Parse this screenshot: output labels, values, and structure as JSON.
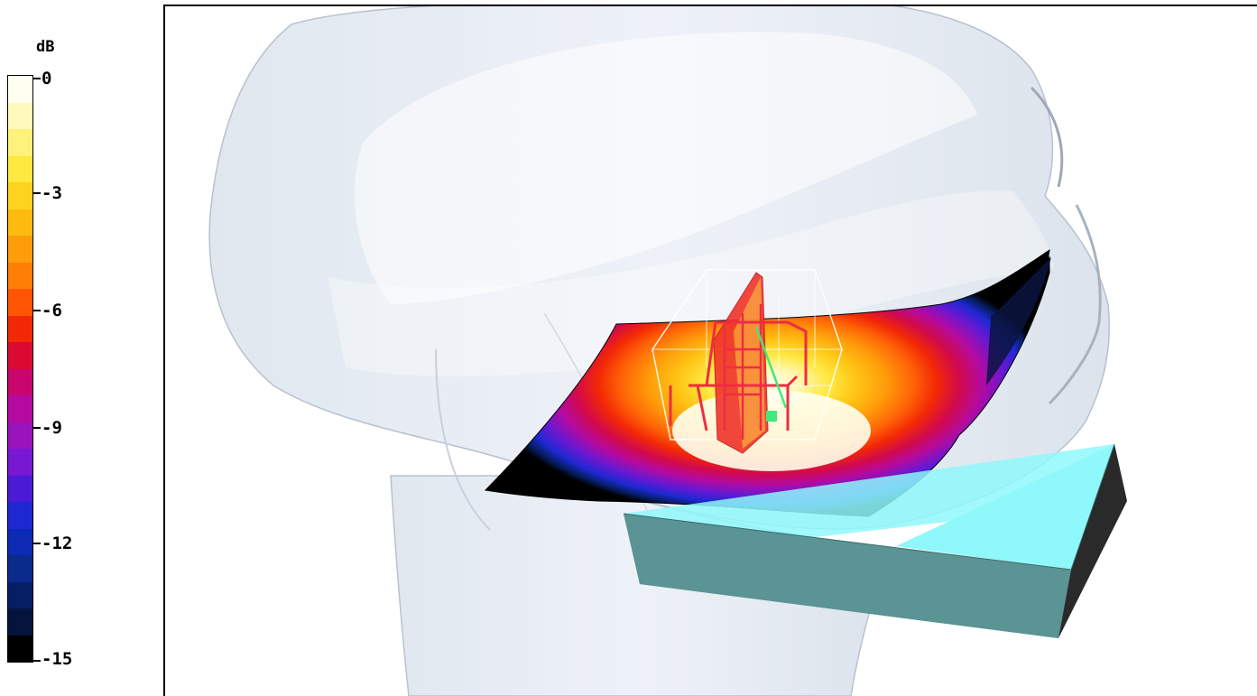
{
  "colorbar": {
    "unit": "dB",
    "min": -15,
    "max": 0,
    "tick_labels": [
      "0",
      "-3",
      "-6",
      "-9",
      "-12",
      "-15"
    ],
    "segments": [
      "#fffff0",
      "#fffabb",
      "#fff27a",
      "#ffe840",
      "#ffd21e",
      "#ffba10",
      "#ff9c0a",
      "#ff7f06",
      "#ff5504",
      "#f22806",
      "#dc0a32",
      "#c8066e",
      "#b40aa0",
      "#9a14be",
      "#7818d2",
      "#4a1ad6",
      "#1e28d2",
      "#0c2ab4",
      "#0a2a8c",
      "#061e64",
      "#04143c",
      "#000000"
    ]
  },
  "colors": {
    "head_fill": "#e6ecf4",
    "head_edge": "#b4bfcc",
    "phone_top": "#8ff8fa",
    "phone_front": "#5a9494",
    "phone_side": "#2a2a2a",
    "probe_red": "#ee2c44",
    "probe_green": "#3fea7a"
  }
}
